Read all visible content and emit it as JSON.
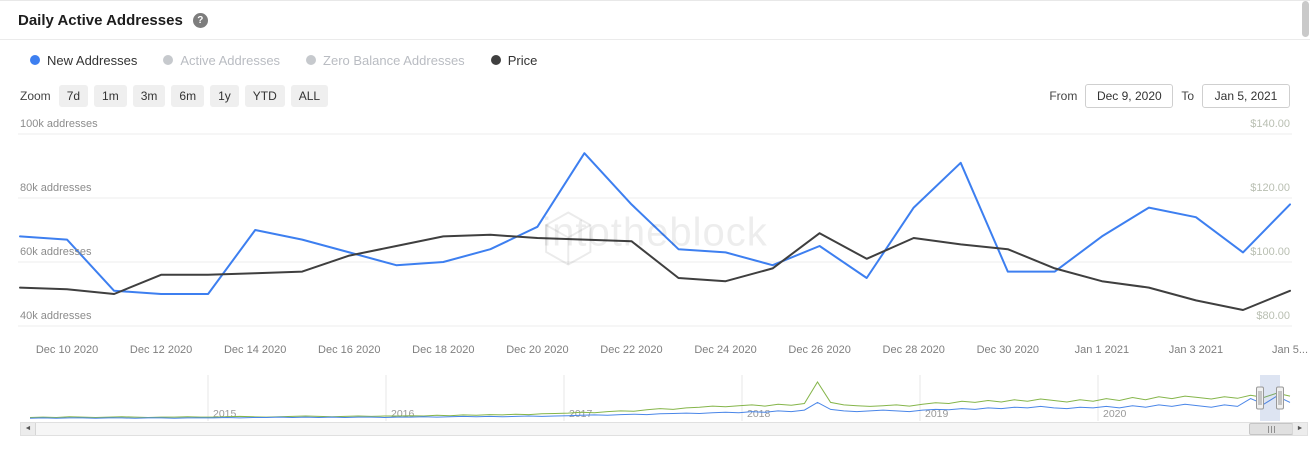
{
  "header": {
    "title": "Daily Active Addresses",
    "help_icon": "?"
  },
  "legend": [
    {
      "label": "New Addresses",
      "color": "#3d7ff0",
      "active": true
    },
    {
      "label": "Active Addresses",
      "color": "#c6c9cd",
      "active": false
    },
    {
      "label": "Zero Balance Addresses",
      "color": "#c6c9cd",
      "active": false
    },
    {
      "label": "Price",
      "color": "#3f3f3f",
      "active": true
    }
  ],
  "toolbar": {
    "zoom_label": "Zoom",
    "ranges": [
      "7d",
      "1m",
      "3m",
      "6m",
      "1y",
      "YTD",
      "ALL"
    ],
    "from_label": "From",
    "from_value": "Dec 9, 2020",
    "to_label": "To",
    "to_value": "Jan 5, 2021"
  },
  "watermark": "intotheblock",
  "chart_data": {
    "type": "line",
    "title": "Daily Active Addresses",
    "grid": true,
    "legend_position": "top",
    "x": [
      "Dec 9 2020",
      "Dec 10 2020",
      "Dec 11 2020",
      "Dec 12 2020",
      "Dec 13 2020",
      "Dec 14 2020",
      "Dec 15 2020",
      "Dec 16 2020",
      "Dec 17 2020",
      "Dec 18 2020",
      "Dec 19 2020",
      "Dec 20 2020",
      "Dec 21 2020",
      "Dec 22 2020",
      "Dec 23 2020",
      "Dec 24 2020",
      "Dec 25 2020",
      "Dec 26 2020",
      "Dec 27 2020",
      "Dec 28 2020",
      "Dec 29 2020",
      "Dec 30 2020",
      "Dec 31 2020",
      "Jan 1 2021",
      "Jan 2 2021",
      "Jan 3 2021",
      "Jan 4 2021",
      "Jan 5 2021"
    ],
    "series": [
      {
        "name": "New Addresses",
        "axis": "left",
        "unit": "k addresses",
        "color": "#3d7ff0",
        "values": [
          68,
          67,
          51,
          50,
          50,
          70,
          67,
          63,
          59,
          60,
          64,
          71,
          94,
          78,
          64,
          63,
          59,
          65,
          55,
          77,
          91,
          57,
          57,
          68,
          77,
          74,
          63,
          78
        ]
      },
      {
        "name": "Price",
        "axis": "right",
        "unit": "USD",
        "color": "#3f3f3f",
        "values": [
          92,
          91.5,
          90,
          96,
          96,
          96.5,
          97,
          102,
          105,
          108,
          108.5,
          107.5,
          107,
          106.5,
          95,
          94,
          98,
          109,
          101,
          107.5,
          105.5,
          104,
          98,
          94,
          92,
          88,
          85,
          91
        ]
      }
    ],
    "y_left": {
      "ticks": [
        100,
        80,
        60,
        40
      ],
      "labels": [
        "100k addresses",
        "80k addresses",
        "60k addresses",
        "40k addresses"
      ]
    },
    "y_right": {
      "ticks": [
        140,
        120,
        100,
        80
      ],
      "labels": [
        "$140.00",
        "$120.00",
        "$100.00",
        "$80.00"
      ]
    },
    "x_ticks": [
      {
        "index": 1,
        "label": "Dec 10 2020"
      },
      {
        "index": 3,
        "label": "Dec 12 2020"
      },
      {
        "index": 5,
        "label": "Dec 14 2020"
      },
      {
        "index": 7,
        "label": "Dec 16 2020"
      },
      {
        "index": 9,
        "label": "Dec 18 2020"
      },
      {
        "index": 11,
        "label": "Dec 20 2020"
      },
      {
        "index": 13,
        "label": "Dec 22 2020"
      },
      {
        "index": 15,
        "label": "Dec 24 2020"
      },
      {
        "index": 17,
        "label": "Dec 26 2020"
      },
      {
        "index": 19,
        "label": "Dec 28 2020"
      },
      {
        "index": 21,
        "label": "Dec 30 2020"
      },
      {
        "index": 23,
        "label": "Jan 1 2021"
      },
      {
        "index": 25,
        "label": "Jan 3 2021"
      },
      {
        "index": 27,
        "label": "Jan 5..."
      }
    ]
  },
  "navigator": {
    "years": [
      "2015",
      "2016",
      "2017",
      "2018",
      "2019",
      "2020"
    ],
    "series": [
      {
        "name": "navigator-green",
        "color": "#85b54a",
        "values": [
          4,
          5,
          4,
          6,
          5,
          4,
          5,
          6,
          5,
          4,
          5,
          5,
          6,
          5,
          5,
          6,
          7,
          6,
          5,
          6,
          7,
          8,
          7,
          6,
          7,
          8,
          7,
          8,
          8,
          9,
          8,
          10,
          9,
          11,
          10,
          12,
          11,
          13,
          12,
          14,
          15,
          16,
          18,
          17,
          20,
          22,
          21,
          25,
          28,
          26,
          30,
          32,
          35,
          33,
          36,
          38,
          35,
          40,
          37,
          42,
          100,
          45,
          38,
          36,
          34,
          36,
          38,
          35,
          40,
          44,
          42,
          48,
          45,
          50,
          46,
          52,
          48,
          54,
          50,
          46,
          52,
          48,
          55,
          50,
          58,
          52,
          60,
          55,
          62,
          58,
          54,
          60,
          56,
          64,
          58,
          70,
          62
        ]
      },
      {
        "name": "navigator-blue",
        "color": "#4a86e8",
        "values": [
          2,
          3,
          2,
          3,
          3,
          2,
          3,
          3,
          2,
          3,
          3,
          2,
          3,
          3,
          3,
          4,
          3,
          4,
          4,
          5,
          4,
          5,
          4,
          5,
          4,
          5,
          5,
          4,
          5,
          5,
          6,
          5,
          6,
          7,
          6,
          7,
          6,
          7,
          8,
          7,
          8,
          9,
          10,
          11,
          10,
          12,
          13,
          12,
          14,
          15,
          16,
          15,
          17,
          18,
          17,
          20,
          18,
          22,
          20,
          24,
          45,
          26,
          22,
          20,
          22,
          24,
          22,
          20,
          24,
          26,
          25,
          28,
          26,
          30,
          28,
          32,
          30,
          34,
          30,
          28,
          32,
          30,
          34,
          30,
          36,
          32,
          38,
          34,
          40,
          36,
          32,
          38,
          34,
          55,
          40,
          62,
          45
        ]
      }
    ]
  },
  "scrollbar": {
    "left_arrow": "◄",
    "right_arrow": "►"
  },
  "colors": {
    "accent_blue": "#3d7ff0",
    "price_dark": "#3f3f3f",
    "grid": "#ececec",
    "axis_text": "#8c8c8c",
    "price_axis_text": "#b9bfb2",
    "inactive_legend": "#c6c9cd"
  }
}
